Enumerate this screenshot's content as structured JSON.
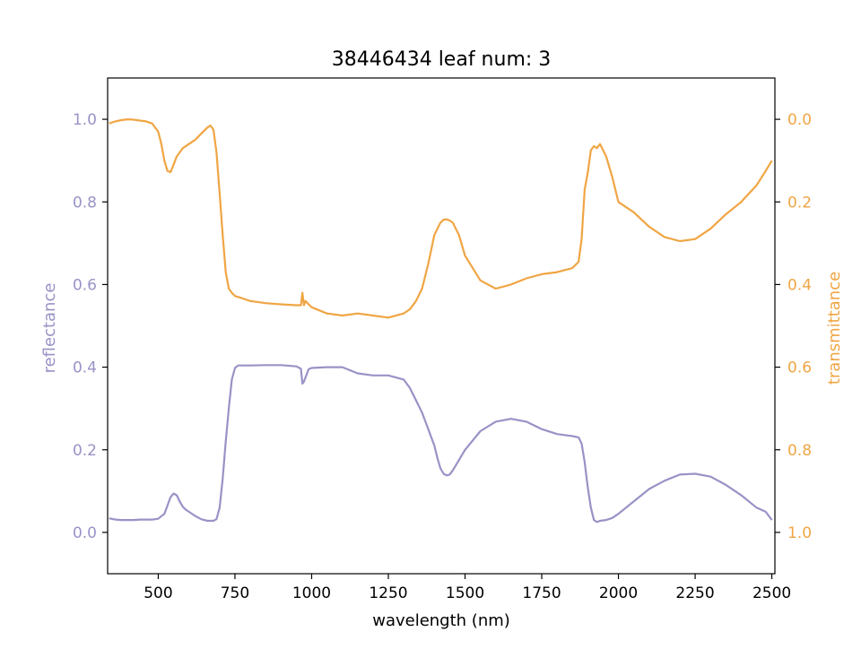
{
  "chart_data": {
    "type": "line",
    "title": "38446434 leaf num: 3",
    "xlabel": "wavelength (nm)",
    "ylabel_left": "reflectance",
    "ylabel_right": "transmittance",
    "xlim": [
      335,
      2510
    ],
    "ylim_left": [
      -0.1,
      1.1
    ],
    "ylim_right": [
      1.1,
      -0.1
    ],
    "grid": false,
    "colors": {
      "reflectance": "#9893c6",
      "transmittance": "#f0a544",
      "axis": "#000000"
    },
    "x_ticks": [
      "500",
      "750",
      "1000",
      "1250",
      "1500",
      "1750",
      "2000",
      "2250",
      "2500"
    ],
    "y_left_ticks": [
      "0.0",
      "0.2",
      "0.4",
      "0.6",
      "0.8",
      "1.0"
    ],
    "y_right_ticks": [
      "0.0",
      "0.2",
      "0.4",
      "0.6",
      "0.8",
      "1.0"
    ],
    "series": [
      {
        "axis": "left",
        "x": [
          340,
          360,
          380,
          400,
          420,
          440,
          460,
          480,
          500,
          520,
          530,
          540,
          550,
          560,
          570,
          580,
          590,
          600,
          620,
          640,
          660,
          680,
          690,
          700,
          710,
          720,
          730,
          740,
          750,
          760,
          800,
          850,
          900,
          950,
          965,
          970,
          975,
          980,
          990,
          1000,
          1050,
          1100,
          1150,
          1200,
          1250,
          1300,
          1320,
          1340,
          1360,
          1380,
          1400,
          1410,
          1420,
          1430,
          1440,
          1450,
          1460,
          1480,
          1500,
          1550,
          1600,
          1650,
          1700,
          1750,
          1800,
          1850,
          1870,
          1880,
          1890,
          1900,
          1910,
          1920,
          1930,
          1940,
          1960,
          1980,
          2000,
          2050,
          2100,
          2150,
          2200,
          2250,
          2300,
          2350,
          2400,
          2450,
          2480,
          2500
        ],
        "y": [
          0.034,
          0.031,
          0.03,
          0.03,
          0.03,
          0.031,
          0.031,
          0.031,
          0.033,
          0.045,
          0.065,
          0.085,
          0.094,
          0.09,
          0.075,
          0.062,
          0.055,
          0.05,
          0.04,
          0.032,
          0.028,
          0.028,
          0.032,
          0.06,
          0.13,
          0.22,
          0.3,
          0.37,
          0.398,
          0.404,
          0.404,
          0.405,
          0.405,
          0.402,
          0.396,
          0.36,
          0.365,
          0.375,
          0.395,
          0.398,
          0.4,
          0.4,
          0.385,
          0.38,
          0.38,
          0.37,
          0.35,
          0.32,
          0.29,
          0.25,
          0.21,
          0.18,
          0.155,
          0.142,
          0.138,
          0.14,
          0.15,
          0.175,
          0.2,
          0.245,
          0.268,
          0.275,
          0.268,
          0.25,
          0.238,
          0.233,
          0.23,
          0.215,
          0.17,
          0.11,
          0.06,
          0.03,
          0.025,
          0.028,
          0.03,
          0.035,
          0.045,
          0.075,
          0.105,
          0.125,
          0.14,
          0.142,
          0.135,
          0.115,
          0.09,
          0.06,
          0.05,
          0.03
        ]
      },
      {
        "axis": "right",
        "x": [
          340,
          360,
          380,
          400,
          420,
          440,
          460,
          480,
          500,
          510,
          520,
          530,
          540,
          550,
          560,
          570,
          580,
          600,
          620,
          640,
          660,
          670,
          680,
          690,
          700,
          710,
          720,
          730,
          740,
          750,
          760,
          780,
          800,
          850,
          900,
          950,
          965,
          970,
          975,
          980,
          990,
          1000,
          1050,
          1100,
          1150,
          1200,
          1250,
          1300,
          1320,
          1340,
          1360,
          1380,
          1400,
          1410,
          1420,
          1430,
          1440,
          1450,
          1460,
          1480,
          1500,
          1550,
          1600,
          1650,
          1700,
          1750,
          1800,
          1850,
          1870,
          1880,
          1890,
          1900,
          1910,
          1920,
          1930,
          1940,
          1960,
          1980,
          2000,
          2050,
          2100,
          2150,
          2200,
          2250,
          2300,
          2350,
          2400,
          2450,
          2480,
          2500
        ],
        "y": [
          0.01,
          0.005,
          0.002,
          0.0,
          0.001,
          0.003,
          0.005,
          0.01,
          0.03,
          0.06,
          0.1,
          0.125,
          0.128,
          0.11,
          0.09,
          0.08,
          0.07,
          0.06,
          0.05,
          0.035,
          0.02,
          0.015,
          0.025,
          0.08,
          0.18,
          0.28,
          0.37,
          0.41,
          0.42,
          0.428,
          0.43,
          0.435,
          0.44,
          0.445,
          0.448,
          0.45,
          0.45,
          0.42,
          0.45,
          0.44,
          0.448,
          0.455,
          0.47,
          0.475,
          0.47,
          0.475,
          0.48,
          0.47,
          0.46,
          0.44,
          0.41,
          0.35,
          0.28,
          0.265,
          0.25,
          0.243,
          0.242,
          0.245,
          0.25,
          0.28,
          0.33,
          0.39,
          0.41,
          0.4,
          0.385,
          0.375,
          0.37,
          0.36,
          0.345,
          0.29,
          0.17,
          0.13,
          0.075,
          0.065,
          0.07,
          0.06,
          0.09,
          0.14,
          0.2,
          0.225,
          0.26,
          0.285,
          0.295,
          0.29,
          0.265,
          0.23,
          0.2,
          0.16,
          0.125,
          0.1
        ]
      }
    ]
  }
}
